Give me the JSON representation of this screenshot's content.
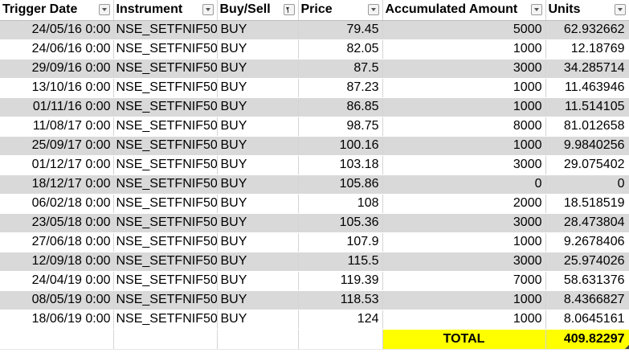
{
  "headers": {
    "trigger_date": "Trigger Date",
    "instrument": "Instrument",
    "buy_sell": "Buy/Sell",
    "price": "Price",
    "accumulated_amount": "Accumulated Amount",
    "units": "Units"
  },
  "rows": [
    {
      "date": "24/05/16 0:00",
      "instrument": "NSE_SETFNIF50",
      "side": "BUY",
      "price": "79.45",
      "amount": "5000",
      "units": "62.932662"
    },
    {
      "date": "24/06/16 0:00",
      "instrument": "NSE_SETFNIF50",
      "side": "BUY",
      "price": "82.05",
      "amount": "1000",
      "units": "12.18769"
    },
    {
      "date": "29/09/16 0:00",
      "instrument": "NSE_SETFNIF50",
      "side": "BUY",
      "price": "87.5",
      "amount": "3000",
      "units": "34.285714"
    },
    {
      "date": "13/10/16 0:00",
      "instrument": "NSE_SETFNIF50",
      "side": "BUY",
      "price": "87.23",
      "amount": "1000",
      "units": "11.463946"
    },
    {
      "date": "01/11/16 0:00",
      "instrument": "NSE_SETFNIF50",
      "side": "BUY",
      "price": "86.85",
      "amount": "1000",
      "units": "11.514105"
    },
    {
      "date": "11/08/17 0:00",
      "instrument": "NSE_SETFNIF50",
      "side": "BUY",
      "price": "98.75",
      "amount": "8000",
      "units": "81.012658"
    },
    {
      "date": "25/09/17 0:00",
      "instrument": "NSE_SETFNIF50",
      "side": "BUY",
      "price": "100.16",
      "amount": "1000",
      "units": "9.9840256"
    },
    {
      "date": "01/12/17 0:00",
      "instrument": "NSE_SETFNIF50",
      "side": "BUY",
      "price": "103.18",
      "amount": "3000",
      "units": "29.075402"
    },
    {
      "date": "18/12/17 0:00",
      "instrument": "NSE_SETFNIF50",
      "side": "BUY",
      "price": "105.86",
      "amount": "0",
      "units": "0"
    },
    {
      "date": "06/02/18 0:00",
      "instrument": "NSE_SETFNIF50",
      "side": "BUY",
      "price": "108",
      "amount": "2000",
      "units": "18.518519"
    },
    {
      "date": "23/05/18 0:00",
      "instrument": "NSE_SETFNIF50",
      "side": "BUY",
      "price": "105.36",
      "amount": "3000",
      "units": "28.473804"
    },
    {
      "date": "27/06/18 0:00",
      "instrument": "NSE_SETFNIF50",
      "side": "BUY",
      "price": "107.9",
      "amount": "1000",
      "units": "9.2678406"
    },
    {
      "date": "12/09/18 0:00",
      "instrument": "NSE_SETFNIF50",
      "side": "BUY",
      "price": "115.5",
      "amount": "3000",
      "units": "25.974026"
    },
    {
      "date": "24/04/19 0:00",
      "instrument": "NSE_SETFNIF50",
      "side": "BUY",
      "price": "119.39",
      "amount": "7000",
      "units": "58.631376"
    },
    {
      "date": "08/05/19 0:00",
      "instrument": "NSE_SETFNIF50",
      "side": "BUY",
      "price": "118.53",
      "amount": "1000",
      "units": "8.4366827"
    },
    {
      "date": "18/06/19 0:00",
      "instrument": "NSE_SETFNIF50",
      "side": "BUY",
      "price": "124",
      "amount": "1000",
      "units": "8.0645161"
    }
  ],
  "total": {
    "label": "TOTAL",
    "value": "409.82297"
  },
  "colors": {
    "band_gray": "#d9d9d9",
    "total_highlight": "#ffff00"
  },
  "icons": {
    "filter": "filter-dropdown-icon",
    "filter_active": "filter-active-icon"
  }
}
